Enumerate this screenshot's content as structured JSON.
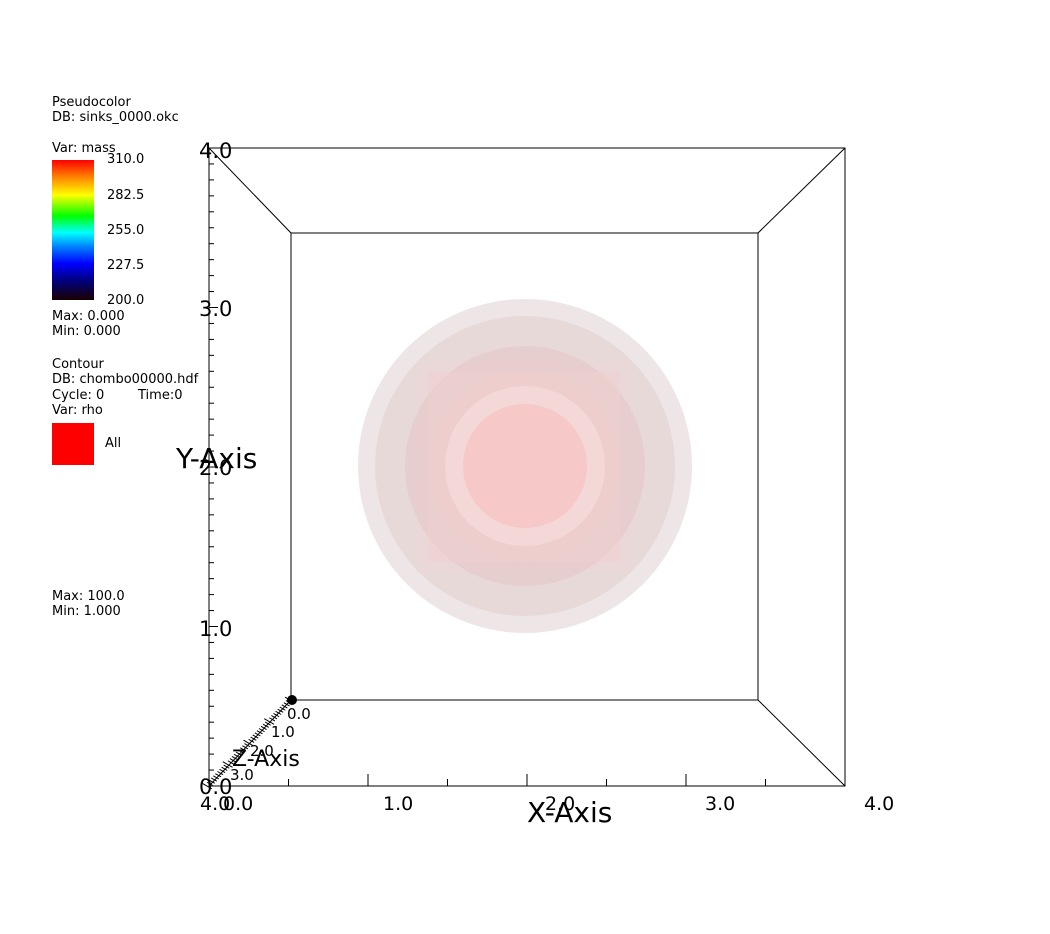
{
  "pseudocolor": {
    "title": "Pseudocolor",
    "db": "DB: sinks_0000.okc",
    "var": "Var: mass",
    "colorbar_labels": [
      "310.0",
      "282.5",
      "255.0",
      "227.5",
      "200.0"
    ],
    "max": "Max:  0.000",
    "min": "Min:  0.000"
  },
  "contour": {
    "title": "Contour",
    "db": "DB: chombo00000.hdf",
    "cycle": "Cycle: 0",
    "time": "Time:0",
    "var": "Var: rho",
    "swatch_label": "All",
    "swatch_color": "#ff0000",
    "max": "Max:  100.0",
    "min": "Min:  1.000"
  },
  "axes": {
    "x_title": "X-Axis",
    "y_title": "Y-Axis",
    "z_title": "Z-Axis",
    "x_ticks": [
      "0.0",
      "1.0",
      "2.0",
      "3.0",
      "4.0"
    ],
    "y_ticks": [
      "0.0",
      "1.0",
      "2.0",
      "3.0",
      "4.0"
    ],
    "z_ticks": [
      "0.0",
      "1.0",
      "2.0",
      "3.0",
      "4.0"
    ]
  }
}
